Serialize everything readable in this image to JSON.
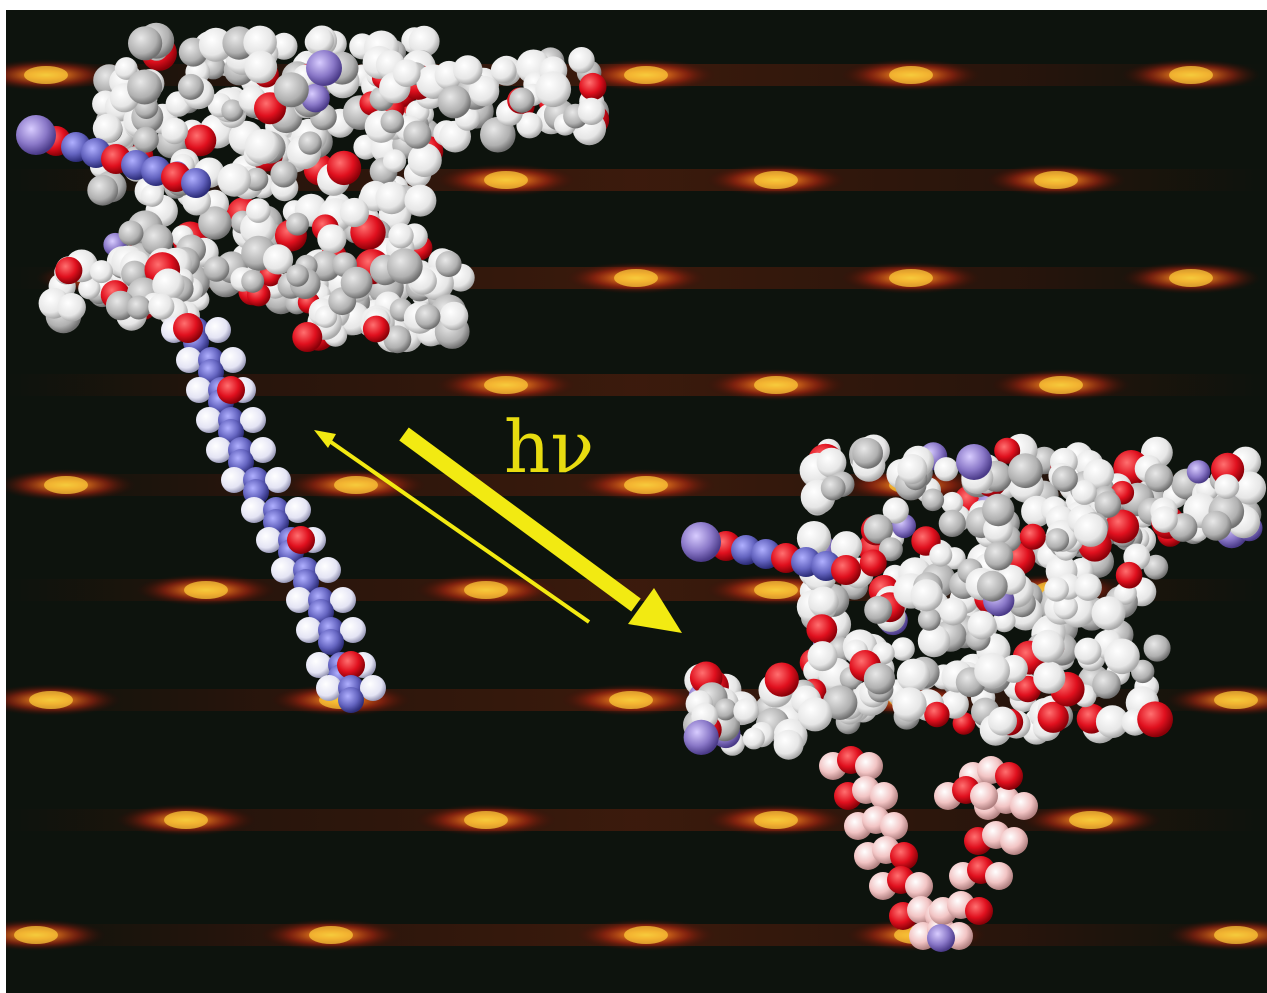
{
  "figure": {
    "annotation": "hν",
    "colors": {
      "background": "#0d130d",
      "diffraction_spot": "#ff6a1a",
      "spot_core": "#ffd23a",
      "arrow": "#f2ea12",
      "label": "#e8dc10",
      "carbon": "#b8b8b8",
      "hydrogen": "#f6f6f6",
      "oxygen": "#e0101e",
      "nitrogen_chain": "#5a5ab8",
      "chain_hydrogen": "#e6e6f6",
      "pink_chain": "#f0c0c0",
      "purple_atom": "#8a78c8"
    },
    "elements": [
      "diffraction-pattern-background",
      "molecule-left-extended",
      "molecule-right-folded",
      "photon-arrow-forward",
      "return-arrow-back",
      "hv-label"
    ]
  }
}
